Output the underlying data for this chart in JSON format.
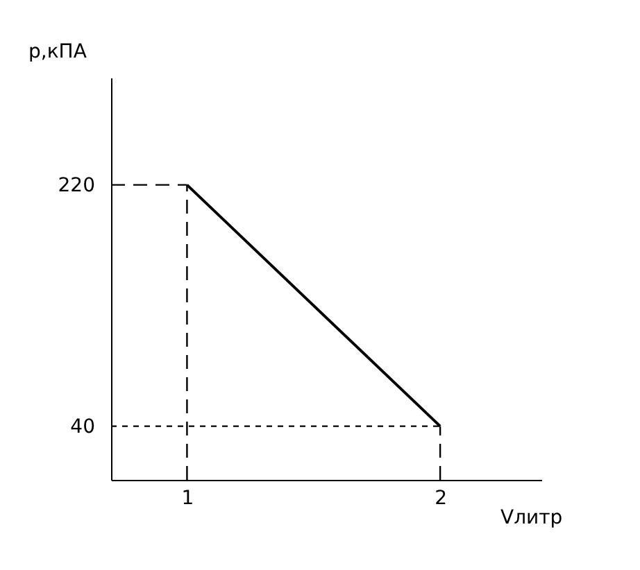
{
  "chart_data": {
    "type": "line",
    "xlabel": "Vлитр",
    "ylabel": "p,кПА",
    "x": [
      1,
      2
    ],
    "series": [
      {
        "color": "#000000",
        "values": [
          220,
          40
        ]
      }
    ],
    "xlim": [
      0.7,
      2.4
    ],
    "ylim": [
      0,
      300
    ],
    "xticks": [
      1,
      2
    ],
    "yticks": [
      40,
      220
    ],
    "ref_lines": [
      {
        "axis": "y",
        "value": 220,
        "color": "#000000",
        "line_style": "dashed"
      },
      {
        "axis": "y",
        "value": 40,
        "color": "#000000",
        "line_style": "dotted"
      },
      {
        "axis": "x",
        "value": 1,
        "color": "#000000",
        "line_style": "dashed"
      },
      {
        "axis": "x",
        "value": 2,
        "color": "#000000",
        "line_style": "dashed"
      }
    ],
    "grid": false,
    "marker": "none",
    "line_style": "solid"
  }
}
